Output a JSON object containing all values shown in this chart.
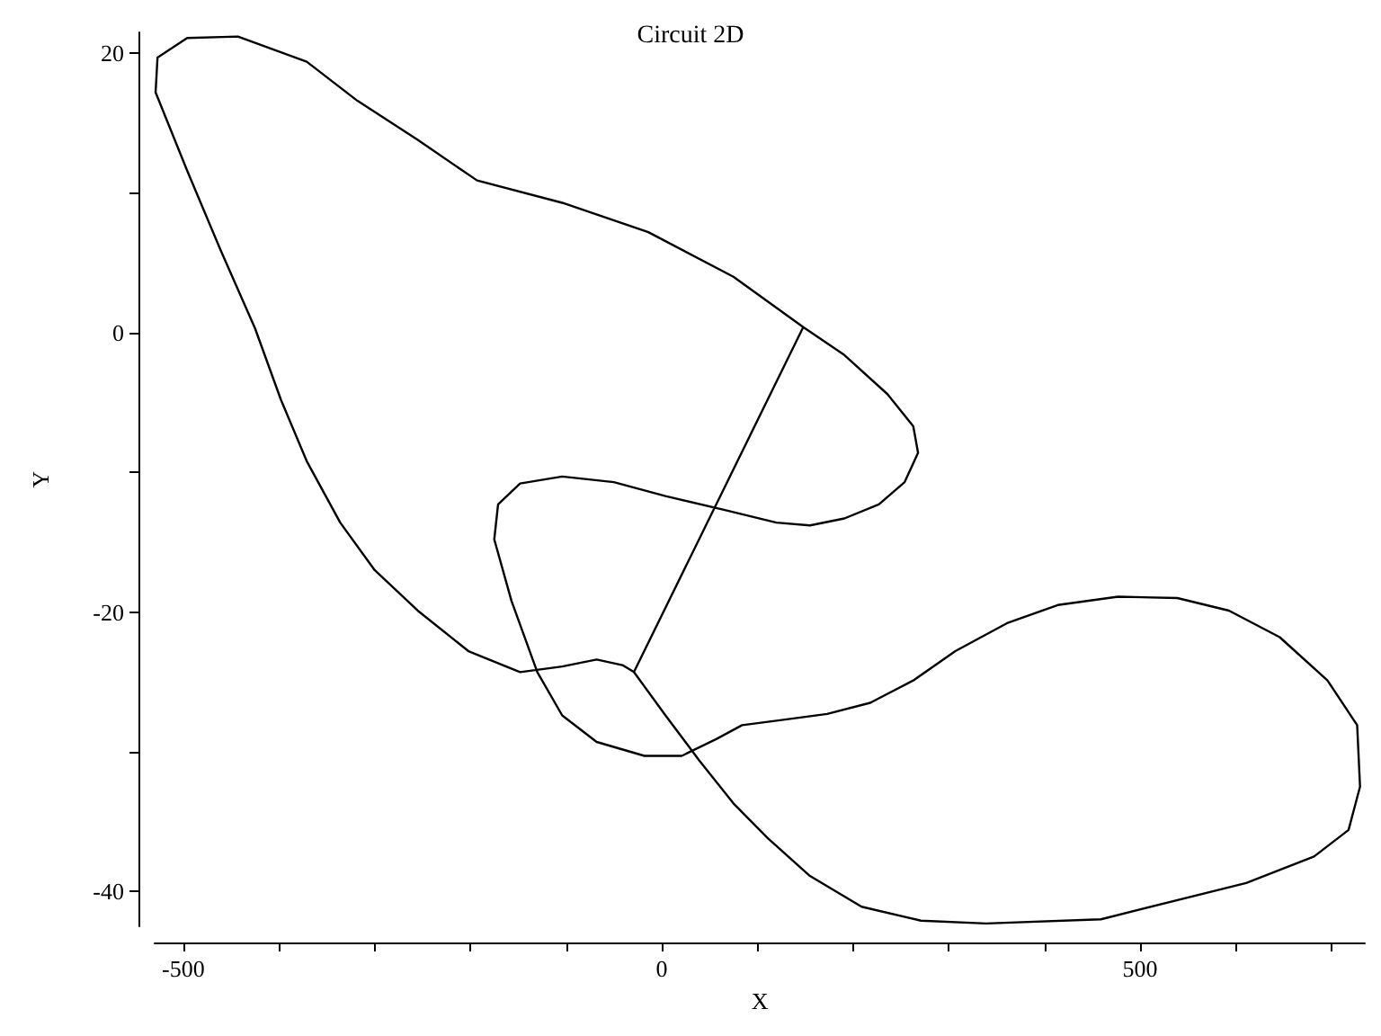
{
  "chart_data": {
    "type": "line",
    "title": "Circuit 2D",
    "xlabel": "X",
    "ylabel": "Y",
    "x": [
      148,
      75,
      -14,
      -104,
      -193,
      -255,
      -318,
      -371,
      -443,
      -496,
      -527,
      -529,
      -496,
      -461,
      -425,
      -398,
      -371,
      -336,
      -300,
      -255,
      -202,
      -148,
      -104,
      -68,
      -41,
      -29,
      4,
      39,
      75,
      111,
      155,
      209,
      271,
      339,
      459,
      611,
      682,
      718,
      730,
      727,
      696,
      646,
      593,
      539,
      477,
      414,
      361,
      307,
      263,
      218,
      173,
      129,
      84,
      57,
      21,
      -18,
      -68,
      -104,
      -130,
      -157,
      -175,
      -171,
      -148,
      -104,
      -50,
      4,
      66,
      120,
      155,
      191,
      227,
      254,
      268,
      263,
      236,
      191,
      148,
      -29
    ],
    "series": [
      {
        "color": "#000000",
        "values": [
          0.4,
          4.0,
          7.2,
          9.3,
          10.9,
          13.8,
          16.6,
          19.4,
          21.2,
          21.1,
          19.7,
          17.2,
          11.6,
          5.9,
          0.3,
          -4.8,
          -9.2,
          -13.6,
          -17.0,
          -19.9,
          -22.8,
          -24.3,
          -23.9,
          -23.4,
          -23.8,
          -24.3,
          -27.4,
          -30.6,
          -33.7,
          -36.2,
          -38.9,
          -41.1,
          -42.1,
          -42.3,
          -42.0,
          -39.4,
          -37.5,
          -35.6,
          -32.5,
          -28.1,
          -24.9,
          -21.8,
          -19.9,
          -19.0,
          -18.9,
          -19.5,
          -20.8,
          -22.8,
          -24.9,
          -26.5,
          -27.3,
          -27.7,
          -28.1,
          -29.1,
          -30.3,
          -30.3,
          -29.3,
          -27.4,
          -24.3,
          -19.2,
          -14.8,
          -12.3,
          -10.8,
          -10.3,
          -10.7,
          -11.7,
          -12.7,
          -13.6,
          -13.8,
          -13.3,
          -12.3,
          -10.7,
          -8.6,
          -6.7,
          -4.4,
          -1.6,
          0.4,
          -24.3
        ]
      }
    ],
    "xlim": [
      -530,
      735
    ],
    "ylim": [
      -42.5,
      21.5
    ],
    "xticks": [
      -500,
      {
        "value": -400,
        "label": null
      },
      {
        "value": -300,
        "label": null
      },
      {
        "value": -200,
        "label": null
      },
      {
        "value": -100,
        "label": null
      },
      0,
      {
        "value": 100,
        "label": null
      },
      {
        "value": 200,
        "label": null
      },
      {
        "value": 300,
        "label": null
      },
      {
        "value": 400,
        "label": null
      },
      500,
      {
        "value": 600,
        "label": null
      },
      {
        "value": 700,
        "label": null
      }
    ],
    "yticks": [
      -40,
      {
        "value": -30,
        "label": null
      },
      -20,
      {
        "value": -10,
        "label": null
      },
      0,
      {
        "value": 10,
        "label": null
      },
      20
    ],
    "grid": false,
    "marker": "none",
    "line_style": "solid"
  }
}
